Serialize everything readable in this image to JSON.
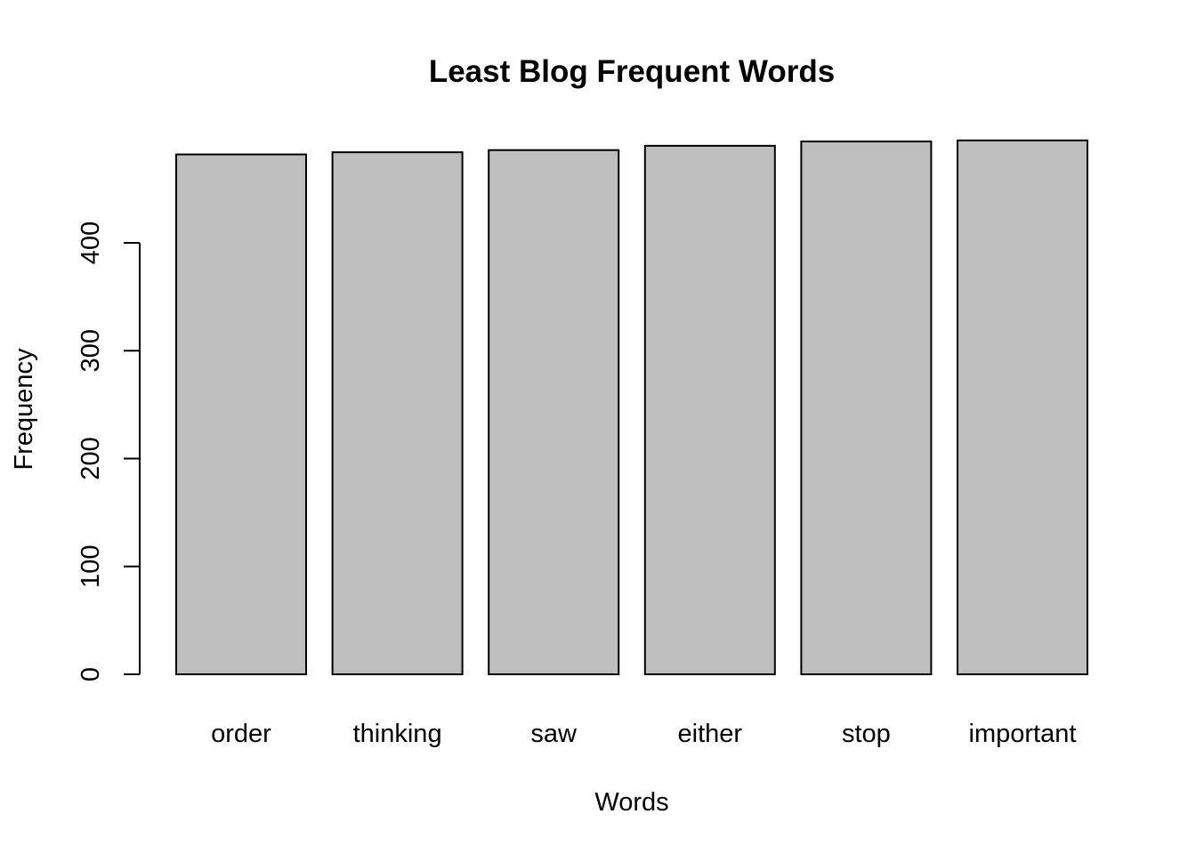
{
  "chart_data": {
    "type": "bar",
    "title": "Least Blog Frequent Words",
    "xlabel": "Words",
    "ylabel": "Frequency",
    "categories": [
      "order",
      "thinking",
      "saw",
      "either",
      "stop",
      "important"
    ],
    "values": [
      482,
      484,
      486,
      490,
      494,
      495
    ],
    "ylim": [
      0,
      400
    ],
    "yticks": [
      0,
      100,
      200,
      300,
      400
    ],
    "bar_color": "#bebebe",
    "grid": false,
    "legend": "none"
  }
}
